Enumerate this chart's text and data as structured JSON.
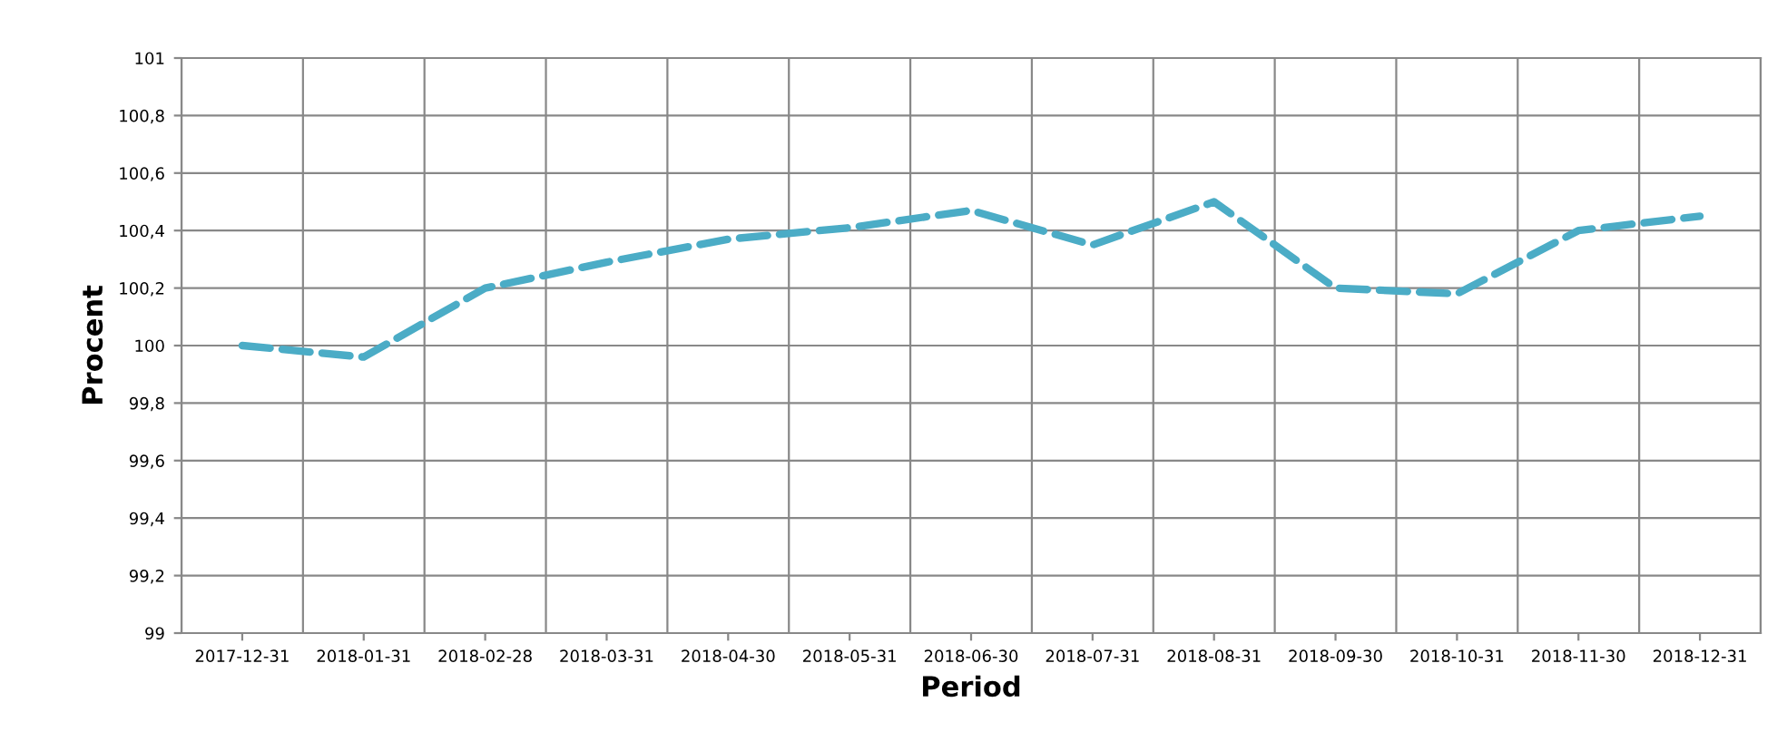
{
  "chart_data": {
    "type": "line",
    "xlabel": "Period",
    "ylabel": "Procent",
    "categories": [
      "2017-12-31",
      "2018-01-31",
      "2018-02-28",
      "2018-03-31",
      "2018-04-30",
      "2018-05-31",
      "2018-06-30",
      "2018-07-31",
      "2018-08-31",
      "2018-09-30",
      "2018-10-31",
      "2018-11-30",
      "2018-12-31"
    ],
    "series": [
      {
        "color": "#4bacc6",
        "values": [
          100.0,
          99.96,
          100.2,
          100.29,
          100.37,
          100.41,
          100.47,
          100.35,
          100.5,
          100.2,
          100.18,
          100.4,
          100.45
        ]
      }
    ],
    "ylim": [
      99,
      101
    ],
    "yticks": [
      {
        "value": 99,
        "label": "99"
      },
      {
        "value": 99.2,
        "label": "99,2"
      },
      {
        "value": 99.4,
        "label": "99,4"
      },
      {
        "value": 99.6,
        "label": "99,6"
      },
      {
        "value": 99.8,
        "label": "99,8"
      },
      {
        "value": 100,
        "label": "100"
      },
      {
        "value": 100.2,
        "label": "100,2"
      },
      {
        "value": 100.4,
        "label": "100,4"
      },
      {
        "value": 100.6,
        "label": "100,6"
      },
      {
        "value": 100.8,
        "label": "100,8"
      },
      {
        "value": 101,
        "label": "101"
      }
    ],
    "grid": true,
    "line_style": "dashed",
    "marker": "none",
    "legend": false
  }
}
